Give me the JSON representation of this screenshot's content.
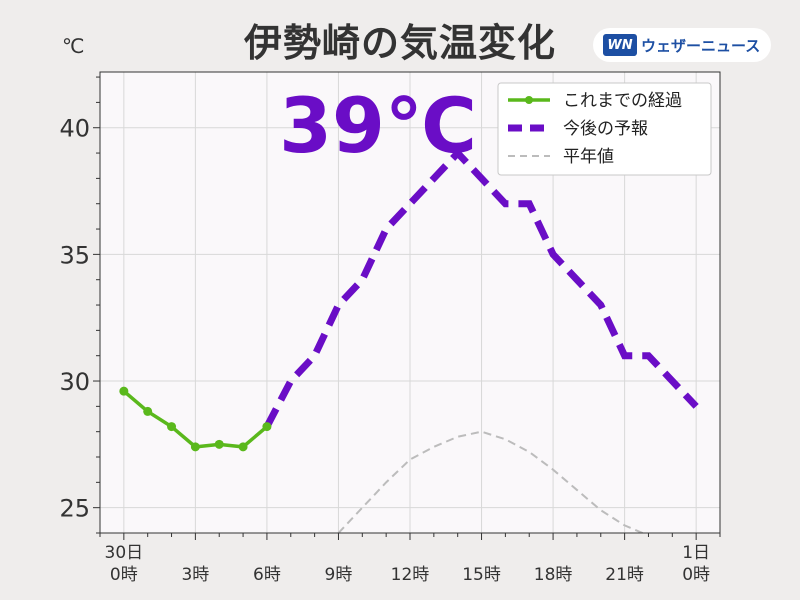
{
  "header": {
    "title": "伊勢崎の気温変化",
    "unit": "℃",
    "logo_mark": "WN",
    "logo_text": "ウェザーニュース"
  },
  "colors": {
    "observed": "#5ab81c",
    "forecast": "#6a0dc6",
    "normal": "#bcbcbc",
    "plot_bg": "#faf8fa",
    "grid": "#d8d8d8"
  },
  "chart_data": {
    "type": "line",
    "big_label": "39℃",
    "ylim": [
      24,
      42.2
    ],
    "yticks": [
      25,
      30,
      35,
      40
    ],
    "xlim": [
      -1,
      25
    ],
    "xticks": [
      {
        "x": 0,
        "label": [
          "30日",
          "0時"
        ]
      },
      {
        "x": 3,
        "label": [
          "3時"
        ]
      },
      {
        "x": 6,
        "label": [
          "6時"
        ]
      },
      {
        "x": 9,
        "label": [
          "9時"
        ]
      },
      {
        "x": 12,
        "label": [
          "12時"
        ]
      },
      {
        "x": 15,
        "label": [
          "15時"
        ]
      },
      {
        "x": 18,
        "label": [
          "18時"
        ]
      },
      {
        "x": 21,
        "label": [
          "21時"
        ]
      },
      {
        "x": 24,
        "label": [
          "1日",
          "0時"
        ]
      }
    ],
    "grid": true,
    "legend_position": "top-right",
    "series": [
      {
        "name": "これまでの経過",
        "style": "solid-markers",
        "x": [
          0,
          1,
          2,
          3,
          4,
          5,
          6
        ],
        "y": [
          29.6,
          28.8,
          28.2,
          27.4,
          27.5,
          27.4,
          28.2
        ]
      },
      {
        "name": "今後の予報",
        "style": "dashed-thick",
        "x": [
          6,
          7,
          8,
          9,
          10,
          11,
          12,
          13,
          14,
          15,
          16,
          17,
          18,
          19,
          20,
          21,
          22,
          23,
          24
        ],
        "y": [
          28.2,
          30,
          31,
          33,
          34,
          36,
          37,
          38,
          39,
          38,
          37,
          37,
          35,
          34,
          33,
          31,
          31,
          30,
          29
        ]
      },
      {
        "name": "平年値",
        "style": "dashed-thin",
        "x": [
          9,
          10,
          11,
          12,
          13,
          14,
          15,
          16,
          17,
          18,
          19,
          20,
          21,
          22,
          23
        ],
        "y": [
          24,
          25,
          26,
          26.9,
          27.4,
          27.8,
          28,
          27.7,
          27.2,
          26.5,
          25.7,
          24.9,
          24.3,
          23.9,
          23.6
        ]
      }
    ]
  }
}
